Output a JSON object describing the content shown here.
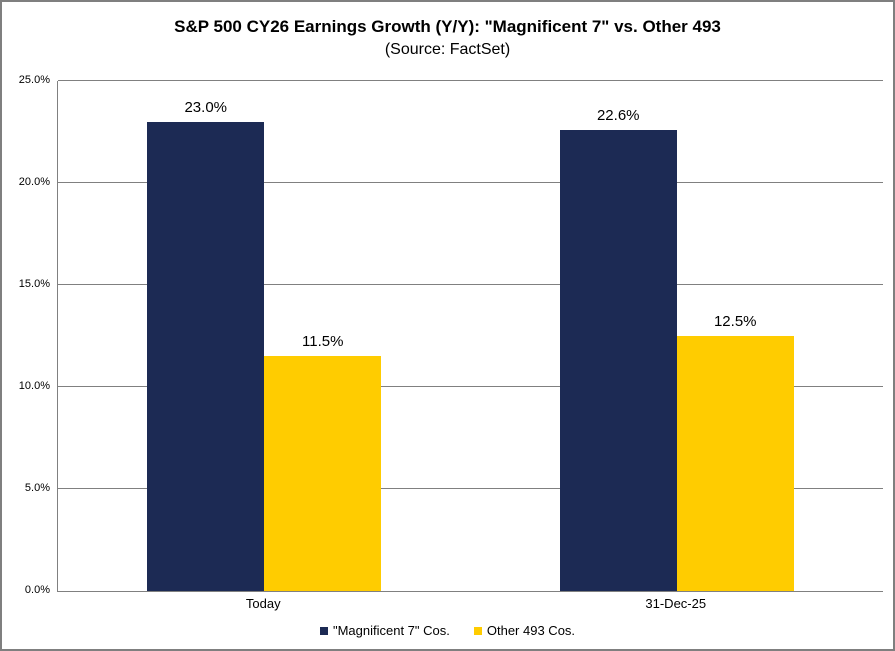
{
  "chart_data": {
    "type": "bar",
    "title": "S&P 500 CY26 Earnings Growth (Y/Y): \"Magnificent 7\" vs. Other 493",
    "subtitle": "(Source: FactSet)",
    "categories": [
      "Today",
      "31-Dec-25"
    ],
    "series": [
      {
        "name": "\"Magnificent 7\" Cos.",
        "color": "#1C2A54",
        "values": [
          23.0,
          22.6
        ],
        "labels": [
          "23.0%",
          "22.6%"
        ]
      },
      {
        "name": "Other 493 Cos.",
        "color": "#FFCC00",
        "values": [
          11.5,
          12.5
        ],
        "labels": [
          "11.5%",
          "12.5%"
        ]
      }
    ],
    "ylim": [
      0,
      25
    ],
    "ytick_step": 5,
    "ytick_labels": [
      "0.0%",
      "5.0%",
      "10.0%",
      "15.0%",
      "20.0%",
      "25.0%"
    ],
    "grid": true,
    "legend_position": "bottom"
  },
  "colors": {
    "navy": "#1C2A54",
    "gold": "#FFCC00",
    "axis_gray": "#808080",
    "border_gray": "#7F7F7F",
    "background": "#FFFFFF"
  }
}
